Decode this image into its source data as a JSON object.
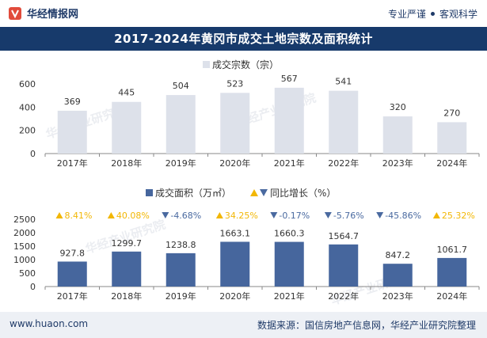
{
  "header": {
    "brand_name": "华经情报网",
    "motto_left": "专业严谨",
    "motto_right": "客观科学"
  },
  "title": "2017-2024年黄冈市成交土地宗数及面积统计",
  "watermark": "华经产业研究院",
  "footer": {
    "site": "www.huaon.com",
    "source": "数据来源：国信房地产信息网，华经产业研究院整理"
  },
  "colors": {
    "title_band": "#173a6b",
    "count_bar": "#dde1ea",
    "area_bar": "#46669d",
    "up_marker": "#f2b705",
    "down_marker": "#4a6aa0"
  },
  "chart_data": [
    {
      "type": "bar",
      "categories": [
        "2017年",
        "2018年",
        "2019年",
        "2020年",
        "2021年",
        "2022年",
        "2023年",
        "2024年"
      ],
      "series": [
        {
          "name": "成交宗数（宗）",
          "values": [
            369,
            445,
            504,
            523,
            567,
            541,
            320,
            270
          ]
        }
      ],
      "yticks": [
        "0",
        "200",
        "400",
        "600"
      ],
      "ylim": [
        0,
        600
      ],
      "legend": "top-center",
      "grid": false
    },
    {
      "type": "bar",
      "categories": [
        "2017年",
        "2018年",
        "2019年",
        "2020年",
        "2021年",
        "2022年",
        "2023年",
        "2024年"
      ],
      "series": [
        {
          "name": "成交面积（万㎡）",
          "values": [
            927.8,
            1299.7,
            1238.8,
            1663.1,
            1660.3,
            1564.7,
            847.2,
            1061.7
          ]
        },
        {
          "name": "同比增长（%）",
          "values": [
            8.41,
            40.08,
            -4.68,
            34.25,
            -0.17,
            -5.76,
            -45.86,
            25.32
          ]
        }
      ],
      "growth_labels": [
        "8.41%",
        "40.08%",
        "-4.68%",
        "34.25%",
        "-0.17%",
        "-5.76%",
        "-45.86%",
        "25.32%"
      ],
      "yticks": [
        "0",
        "500",
        "1000",
        "1500",
        "2000",
        "2500"
      ],
      "ylim": [
        0,
        2500
      ],
      "legend": "top-center",
      "grid": false
    }
  ]
}
